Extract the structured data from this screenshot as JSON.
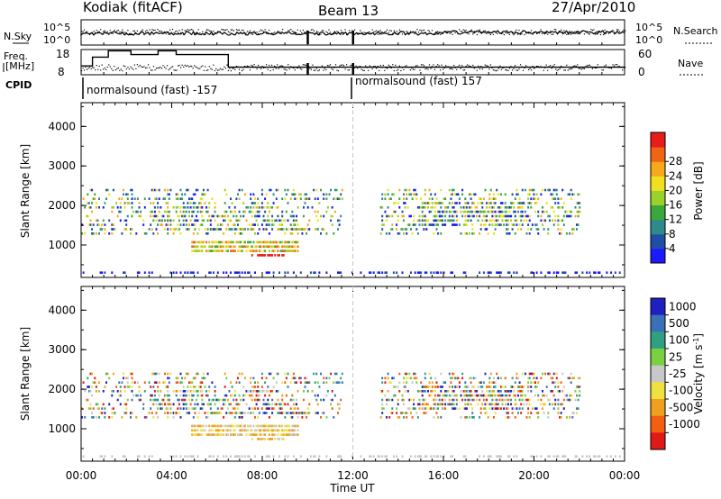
{
  "header": {
    "title": "Kodiak (fitACF)",
    "beam": "Beam 13",
    "date": "27/Apr/2010"
  },
  "top_panel": {
    "nsky_label": "N.Sky",
    "nsearch_label": "N.Search",
    "left_ticks": [
      "10^5",
      "10^0"
    ],
    "right_ticks": [
      "10^5",
      "10^0"
    ],
    "freq_label_1": "Freq.",
    "freq_label_2": "[MHz]",
    "freq_ticks": [
      "18",
      "8"
    ],
    "nave_label": "Nave",
    "nave_ticks": [
      "60",
      "0"
    ],
    "cpid_label": "CPID",
    "cpid_segments": [
      {
        "label": "normalsound (fast) -157"
      },
      {
        "label": "normalsound (fast) 157"
      }
    ],
    "freq_steps": [
      {
        "t": 0,
        "f": 11.5
      },
      {
        "t": 0.5,
        "f": 15
      },
      {
        "t": 1.2,
        "f": 17.5
      },
      {
        "t": 2.2,
        "f": 16
      },
      {
        "t": 3.4,
        "f": 17.5
      },
      {
        "t": 4.2,
        "f": 16
      },
      {
        "t": 6.5,
        "f": 11
      },
      {
        "t": 24,
        "f": 11
      }
    ]
  },
  "chart_data": [
    {
      "type": "heatmap",
      "name": "power",
      "ylabel": "Slant Range [km]",
      "yticks": [
        "1000",
        "2000",
        "3000",
        "4000"
      ],
      "ylim": [
        180,
        4600
      ],
      "xlim": [
        0,
        24
      ],
      "colorbar": {
        "label": "Power [dB]",
        "ticks": [
          "4",
          "8",
          "12",
          "16",
          "20",
          "24",
          "28"
        ],
        "range": [
          0,
          32
        ],
        "colors": [
          "#1a1aff",
          "#1f4ea6",
          "#2e8b8b",
          "#3aa83a",
          "#9ad12a",
          "#f0e020",
          "#f7a81b",
          "#f06414",
          "#e81c1c"
        ]
      }
    },
    {
      "type": "heatmap",
      "name": "velocity",
      "ylabel": "Slant Range [km]",
      "yticks": [
        "1000",
        "2000",
        "3000",
        "4000"
      ],
      "ylim": [
        180,
        4600
      ],
      "xlim": [
        0,
        24
      ],
      "xticks": [
        "00:00",
        "04:00",
        "08:00",
        "12:00",
        "16:00",
        "20:00",
        "00:00"
      ],
      "xlabel": "Time UT",
      "colorbar": {
        "label": "Velocity [m s",
        "ticks": [
          "1000",
          "500",
          "100",
          "25",
          "-25",
          "-100",
          "-500",
          "-1000"
        ],
        "colors": [
          "#2020c0",
          "#3a70b8",
          "#2fa080",
          "#7ad040",
          "#c8c8c8",
          "#f0e040",
          "#f0a020",
          "#f06010",
          "#e01818"
        ]
      }
    }
  ]
}
